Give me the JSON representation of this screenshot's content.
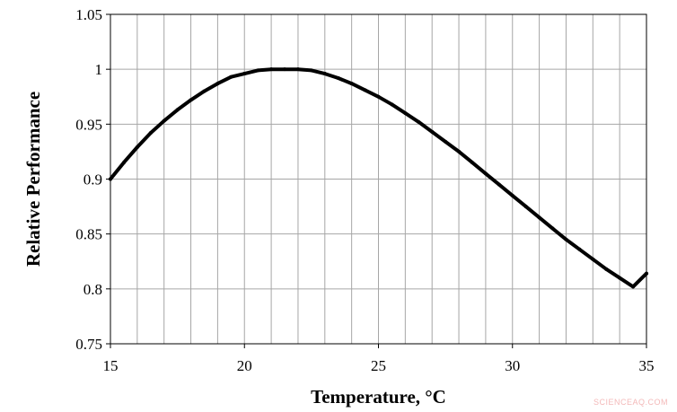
{
  "chart_data": {
    "type": "line",
    "title": "",
    "xlabel": "Temperature, °C",
    "ylabel": "Relative Performance",
    "xlim": [
      15,
      35
    ],
    "ylim": [
      0.75,
      1.05
    ],
    "xticks": [
      15,
      20,
      25,
      30,
      35
    ],
    "xtick_labels": [
      "15",
      "20",
      "25",
      "30",
      "35"
    ],
    "yticks": [
      0.75,
      0.8,
      0.85,
      0.9,
      0.95,
      1.0,
      1.05
    ],
    "ytick_labels": [
      "0.75",
      "0.8",
      "0.85",
      "0.9",
      "0.95",
      "1",
      "1.05"
    ],
    "x_minor_grid_step": 1,
    "grid": true,
    "legend": "none",
    "series": [
      {
        "color": "#000000",
        "x": [
          15,
          15.5,
          16,
          16.5,
          17,
          17.5,
          18,
          18.5,
          19,
          19.5,
          20,
          20.5,
          21,
          21.5,
          22,
          22.5,
          23,
          23.5,
          24,
          24.5,
          25,
          25.5,
          26,
          26.5,
          27,
          27.5,
          28,
          28.5,
          29,
          29.5,
          30,
          30.5,
          31,
          31.5,
          32,
          32.5,
          33,
          33.5,
          34,
          34.5,
          35
        ],
        "y": [
          0.9,
          0.915,
          0.929,
          0.942,
          0.953,
          0.963,
          0.972,
          0.98,
          0.987,
          0.993,
          0.996,
          0.999,
          1.0,
          1.0,
          1.0,
          0.999,
          0.996,
          0.992,
          0.987,
          0.981,
          0.975,
          0.968,
          0.96,
          0.952,
          0.943,
          0.934,
          0.925,
          0.915,
          0.905,
          0.895,
          0.885,
          0.875,
          0.865,
          0.855,
          0.845,
          0.836,
          0.827,
          0.818,
          0.81,
          0.802,
          0.814
        ]
      }
    ]
  },
  "watermark": {
    "text": "SCIENCEAQ.COM",
    "color": "#f3b8b8"
  }
}
